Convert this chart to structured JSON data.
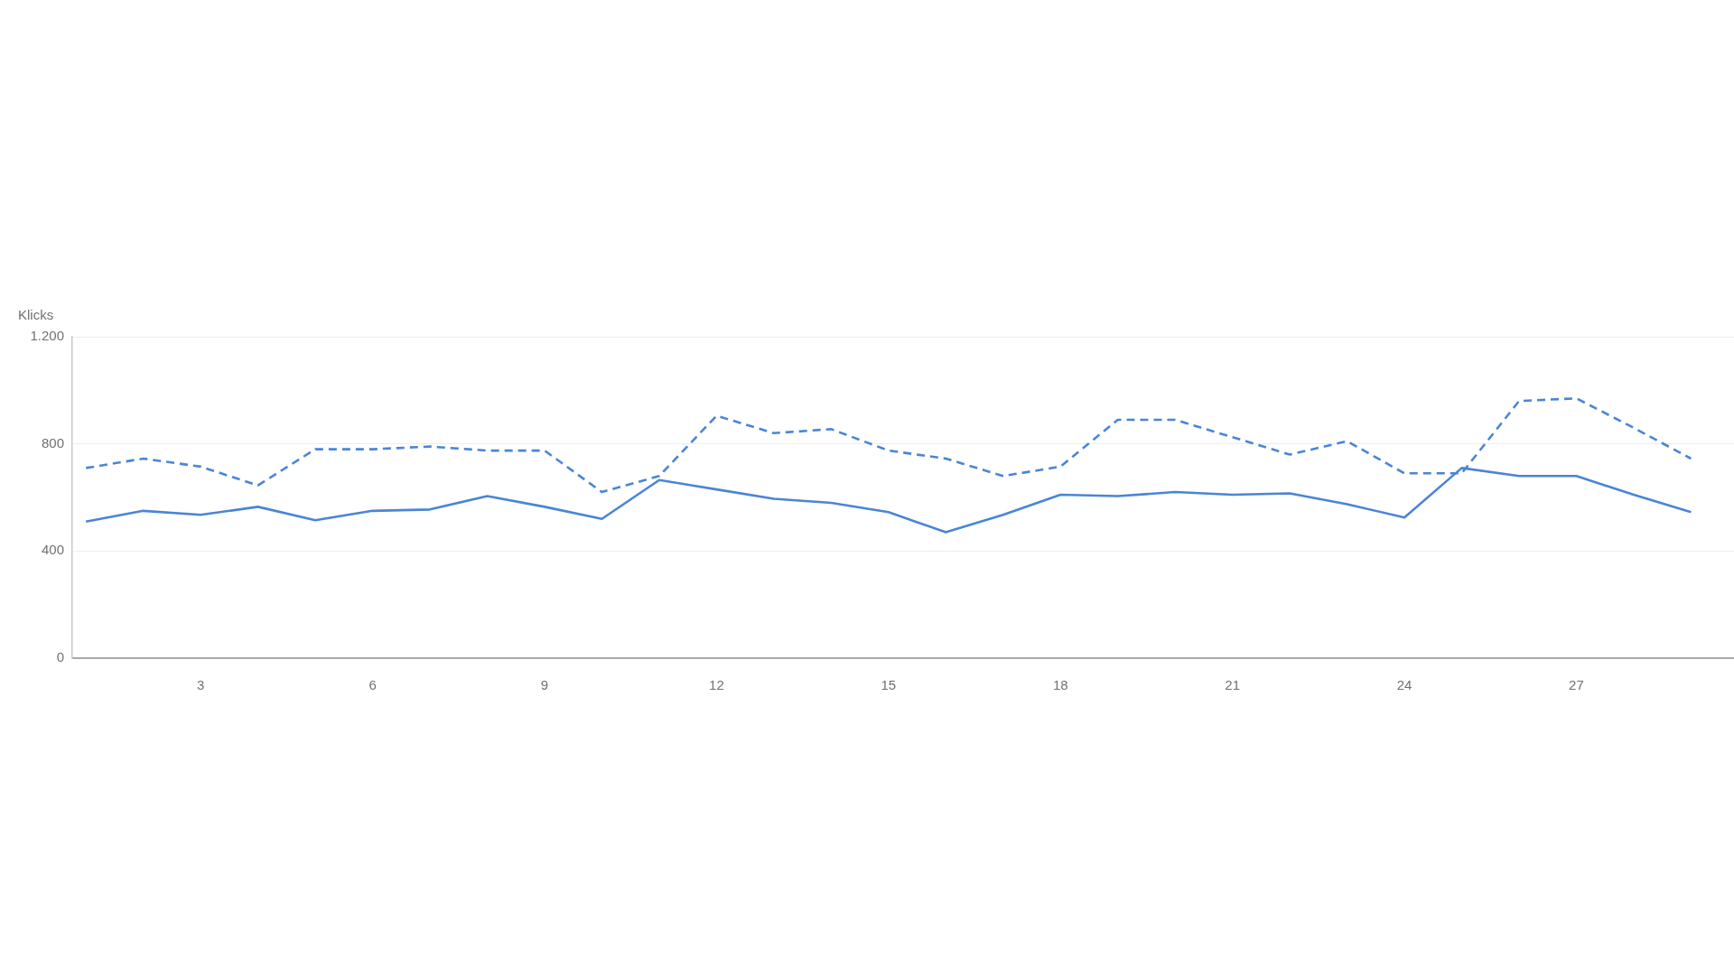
{
  "chart_data": {
    "type": "line",
    "ylabel": "Klicks",
    "x": [
      1,
      2,
      3,
      4,
      5,
      6,
      7,
      8,
      9,
      10,
      11,
      12,
      13,
      14,
      15,
      16,
      17,
      18,
      19,
      20,
      21,
      22,
      23,
      24,
      25,
      26,
      27,
      28,
      29
    ],
    "xlim": [
      0.76,
      29.75
    ],
    "xticks": [
      3,
      6,
      9,
      12,
      15,
      18,
      21,
      24,
      27
    ],
    "ylim": [
      0,
      1200
    ],
    "yticks": [
      0,
      400,
      800,
      {
        "value": 1200,
        "label": "1.200"
      }
    ],
    "grid": "y",
    "legend": false,
    "marker": "none",
    "series": [
      {
        "color": "#4a85d6",
        "line_style": "solid",
        "values": [
          510,
          550,
          535,
          565,
          515,
          550,
          555,
          605,
          565,
          520,
          665,
          630,
          595,
          580,
          545,
          470,
          535,
          610,
          605,
          620,
          610,
          615,
          575,
          525,
          710,
          680,
          680,
          610,
          545
        ]
      },
      {
        "color": "#4a85d6",
        "line_style": "dashed",
        "values": [
          710,
          745,
          715,
          645,
          780,
          780,
          790,
          775,
          775,
          620,
          680,
          905,
          840,
          855,
          775,
          745,
          680,
          715,
          890,
          890,
          825,
          760,
          810,
          690,
          690,
          960,
          970,
          860,
          745
        ]
      }
    ]
  }
}
